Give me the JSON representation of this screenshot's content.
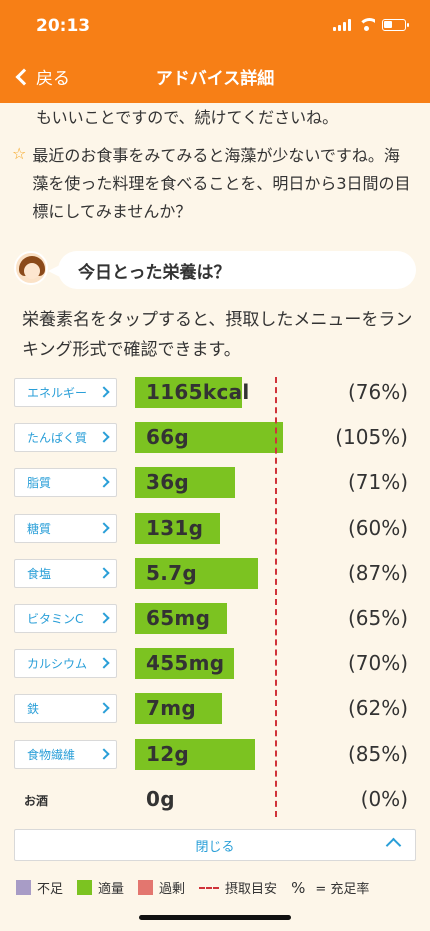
{
  "status_bar": {
    "time": "20:13"
  },
  "nav": {
    "back_label": "戻る",
    "title": "アドバイス詳細"
  },
  "advice": {
    "continued_text": "もいいことですので、続けてくださいね。",
    "text": "最近のお食事をみてみると海藻が少ないですね。海藻を使った料理を食べることを、明日から3日間の目標にしてみませんか？"
  },
  "section": {
    "bubble_title": "今日とった栄養は？",
    "description": "栄養素名をタップすると、摂取したメニューをランキング形式で確認できます。"
  },
  "nutrients": [
    {
      "name": "エネルギー",
      "value": "1165kcal",
      "percent": "(76%)",
      "ratio": 0.76,
      "tappable": true
    },
    {
      "name": "たんぱく質",
      "value": "66g",
      "percent": "(105%)",
      "ratio": 1.05,
      "tappable": true
    },
    {
      "name": "脂質",
      "value": "36g",
      "percent": "(71%)",
      "ratio": 0.71,
      "tappable": true
    },
    {
      "name": "糖質",
      "value": "131g",
      "percent": "(60%)",
      "ratio": 0.6,
      "tappable": true
    },
    {
      "name": "食塩",
      "value": "5.7g",
      "percent": "(87%)",
      "ratio": 0.87,
      "tappable": true
    },
    {
      "name": "ビタミンC",
      "value": "65mg",
      "percent": "(65%)",
      "ratio": 0.65,
      "tappable": true
    },
    {
      "name": "カルシウム",
      "value": "455mg",
      "percent": "(70%)",
      "ratio": 0.7,
      "tappable": true
    },
    {
      "name": "鉄",
      "value": "7mg",
      "percent": "(62%)",
      "ratio": 0.62,
      "tappable": true
    },
    {
      "name": "食物繊維",
      "value": "12g",
      "percent": "(85%)",
      "ratio": 0.85,
      "tappable": true
    },
    {
      "name": "お酒",
      "value": "0g",
      "percent": "(0%)",
      "ratio": 0,
      "tappable": false
    }
  ],
  "close_label": "閉じる",
  "legend": {
    "shortage": "不足",
    "adequate": "適量",
    "excess": "過剰",
    "target": "摂取目安",
    "pct_symbol": "%",
    "pct_text": "= 充足率"
  },
  "colors": {
    "header": "#f77f16",
    "shortage": "#a89cc6",
    "adequate": "#7cc321",
    "excess": "#e3766f",
    "target_line": "#d0333a",
    "link": "#2a9fd8"
  }
}
